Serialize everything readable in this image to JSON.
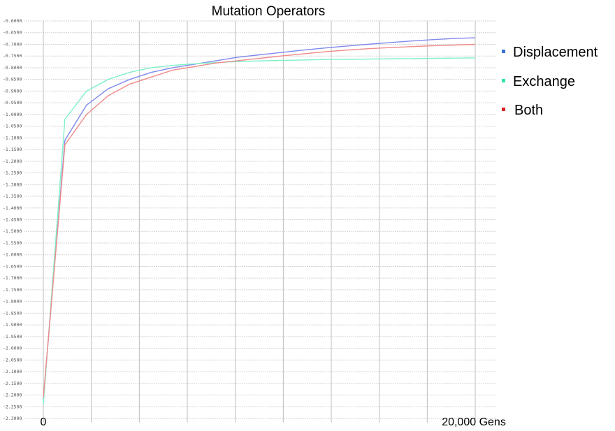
{
  "chart_data": {
    "type": "line",
    "title": "Mutation Operators",
    "x_start_label": "0",
    "x_end_label": "20,000 Gens",
    "x": [
      0,
      1000,
      2000,
      3000,
      4000,
      5000,
      6000,
      7000,
      8000,
      9000,
      10000,
      11000,
      12000,
      13000,
      14000,
      15000,
      16000,
      17000,
      18000,
      19000,
      20000
    ],
    "xlim": [
      0,
      20000
    ],
    "ylim": [
      -2.3,
      -0.6
    ],
    "y_ticks": [
      "-0.6000",
      "-0.6500",
      "-0.7000",
      "-0.7500",
      "-0.8000",
      "-0.8500",
      "-0.9000",
      "-0.9500",
      "-1.0000",
      "-1.0500",
      "-1.1000",
      "-1.1500",
      "-1.2000",
      "-1.2500",
      "-1.3000",
      "-1.3500",
      "-1.4000",
      "-1.4500",
      "-1.5000",
      "-1.5500",
      "-1.6000",
      "-1.6500",
      "-1.7000",
      "-1.7500",
      "-1.8000",
      "-1.8500",
      "-1.9000",
      "-1.9500",
      "-2.0000",
      "-2.0500",
      "-2.1000",
      "-2.1500",
      "-2.2000",
      "-2.2500",
      "-2.3000"
    ],
    "grid": true,
    "legend_position": "right",
    "series": [
      {
        "name": "Displacement",
        "color": "#3a6fd8",
        "line_color": "#8088ee",
        "values": [
          -2.22,
          -1.11,
          -0.96,
          -0.89,
          -0.85,
          -0.82,
          -0.8,
          -0.785,
          -0.77,
          -0.755,
          -0.745,
          -0.735,
          -0.725,
          -0.716,
          -0.708,
          -0.7,
          -0.693,
          -0.686,
          -0.68,
          -0.675,
          -0.672
        ]
      },
      {
        "name": "Exchange",
        "color": "#2ee8a0",
        "line_color": "#7ef0c8",
        "values": [
          -2.24,
          -1.02,
          -0.9,
          -0.85,
          -0.82,
          -0.8,
          -0.79,
          -0.783,
          -0.778,
          -0.774,
          -0.771,
          -0.769,
          -0.767,
          -0.765,
          -0.764,
          -0.763,
          -0.762,
          -0.761,
          -0.76,
          -0.759,
          -0.758
        ]
      },
      {
        "name": "Both",
        "color": "#e02020",
        "line_color": "#f08a8a",
        "values": [
          -2.21,
          -1.13,
          -1.0,
          -0.92,
          -0.87,
          -0.84,
          -0.81,
          -0.795,
          -0.78,
          -0.77,
          -0.76,
          -0.75,
          -0.741,
          -0.732,
          -0.725,
          -0.719,
          -0.714,
          -0.71,
          -0.706,
          -0.703,
          -0.7
        ]
      }
    ]
  }
}
